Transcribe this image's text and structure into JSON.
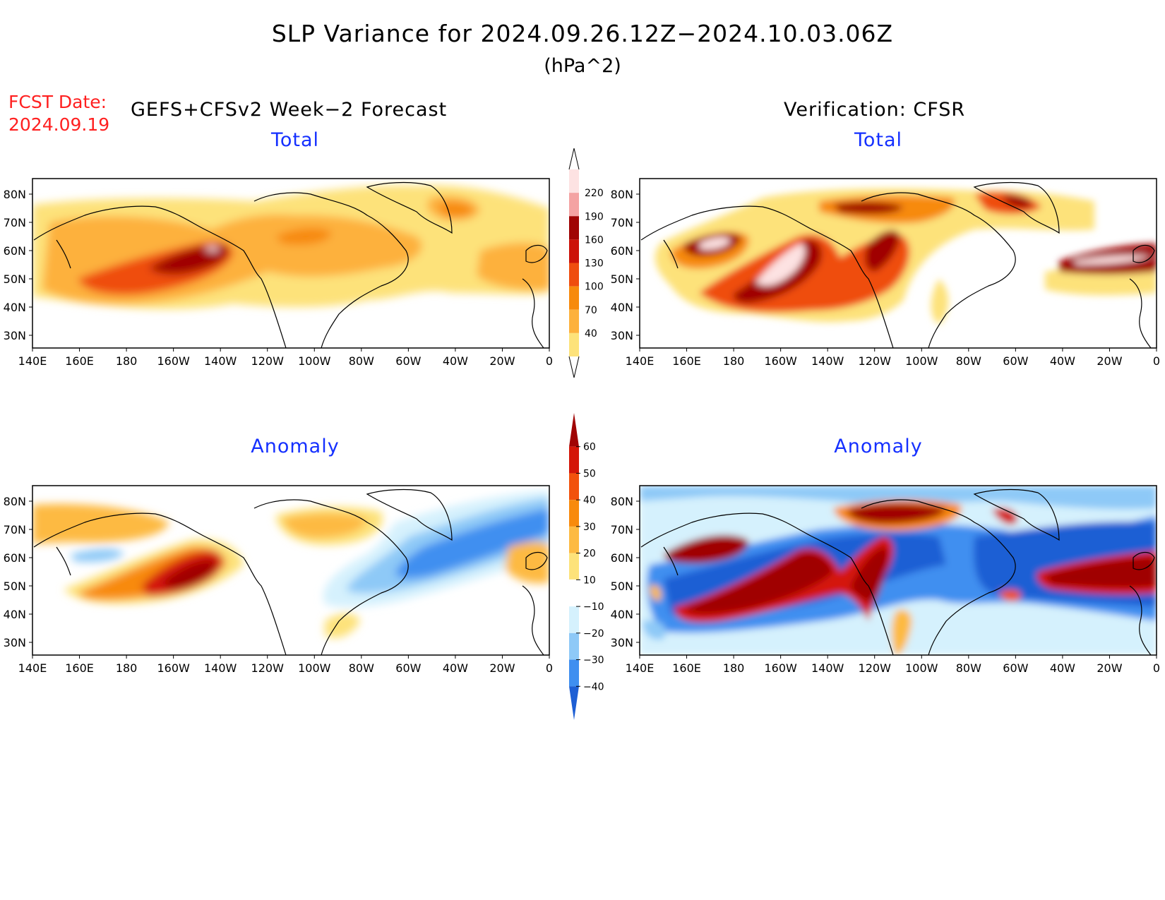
{
  "header": {
    "title": "SLP Variance for 2024.09.26.12Z−2024.10.03.06Z",
    "units": "(hPa^2)",
    "fcst_label": "FCST Date:",
    "fcst_date": "2024.09.19",
    "forecast_title": "GEFS+CFSv2 Week−2 Forecast",
    "verification_title": "Verification: CFSR"
  },
  "panels": {
    "fcst_total": "Total",
    "obs_total": "Total",
    "fcst_anom": "Anomaly",
    "obs_anom": "Anomaly"
  },
  "axes": {
    "lat_labels": [
      "80N",
      "70N",
      "60N",
      "50N",
      "40N",
      "30N"
    ],
    "lon_labels": [
      "140E",
      "160E",
      "180",
      "160W",
      "140W",
      "120W",
      "100W",
      "80W",
      "60W",
      "40W",
      "20W",
      "0"
    ]
  },
  "colorbars": {
    "total": {
      "levels": [
        "40",
        "70",
        "100",
        "130",
        "160",
        "190",
        "220"
      ],
      "colors": [
        "#fde27a",
        "#fdb13c",
        "#f78a0c",
        "#ef4d0e",
        "#cc1208",
        "#a00404",
        "#f4a3a3",
        "#fde2e2"
      ]
    },
    "anomaly": {
      "levels": [
        "60",
        "50",
        "40",
        "30",
        "20",
        "10",
        "−10",
        "−20",
        "−30",
        "−40"
      ],
      "colors": [
        "#a00404",
        "#d41608",
        "#f2520c",
        "#f88a0c",
        "#fdba42",
        "#fde27a",
        "#ffffff",
        "#d5f1fd",
        "#8ec9f7",
        "#3f8ff0",
        "#1e5fd4"
      ]
    }
  }
}
